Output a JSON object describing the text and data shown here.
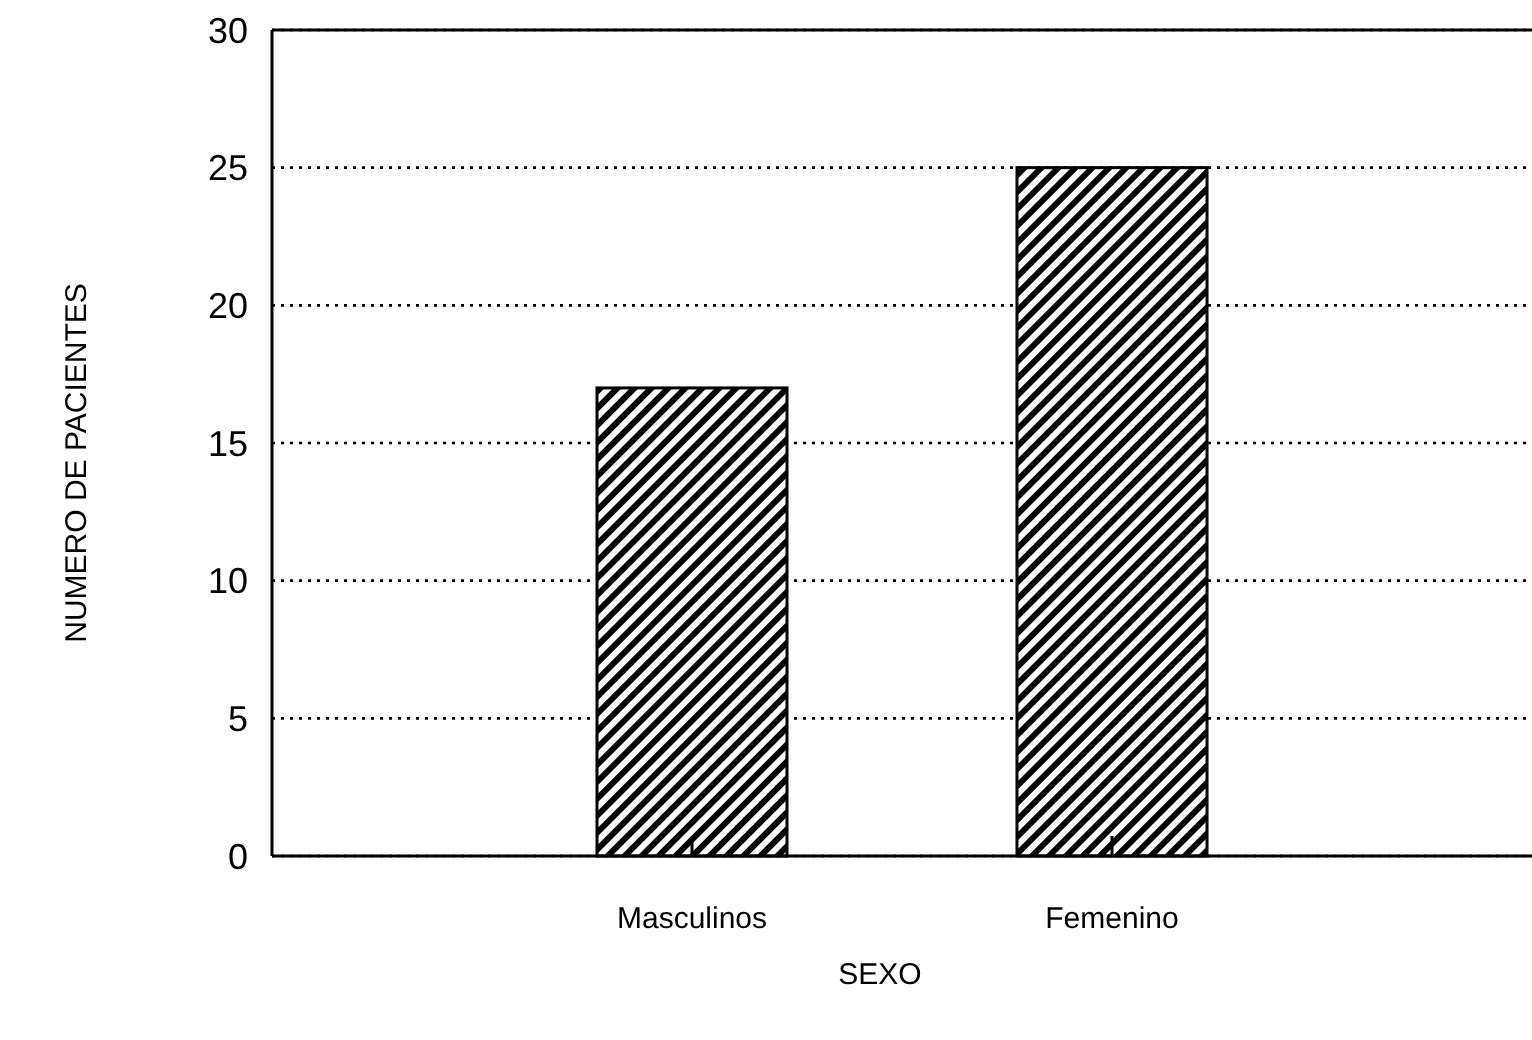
{
  "chart_data": {
    "type": "bar",
    "xlabel": "SEXO",
    "ylabel": "NUMERO DE PACIENTES",
    "categories": [
      "Masculinos",
      "Femenino"
    ],
    "values": [
      17,
      25
    ],
    "color": "#000000",
    "ylim": [
      0,
      30
    ],
    "yticks": [
      0,
      5,
      10,
      15,
      20,
      25,
      30
    ],
    "grid": "y"
  }
}
